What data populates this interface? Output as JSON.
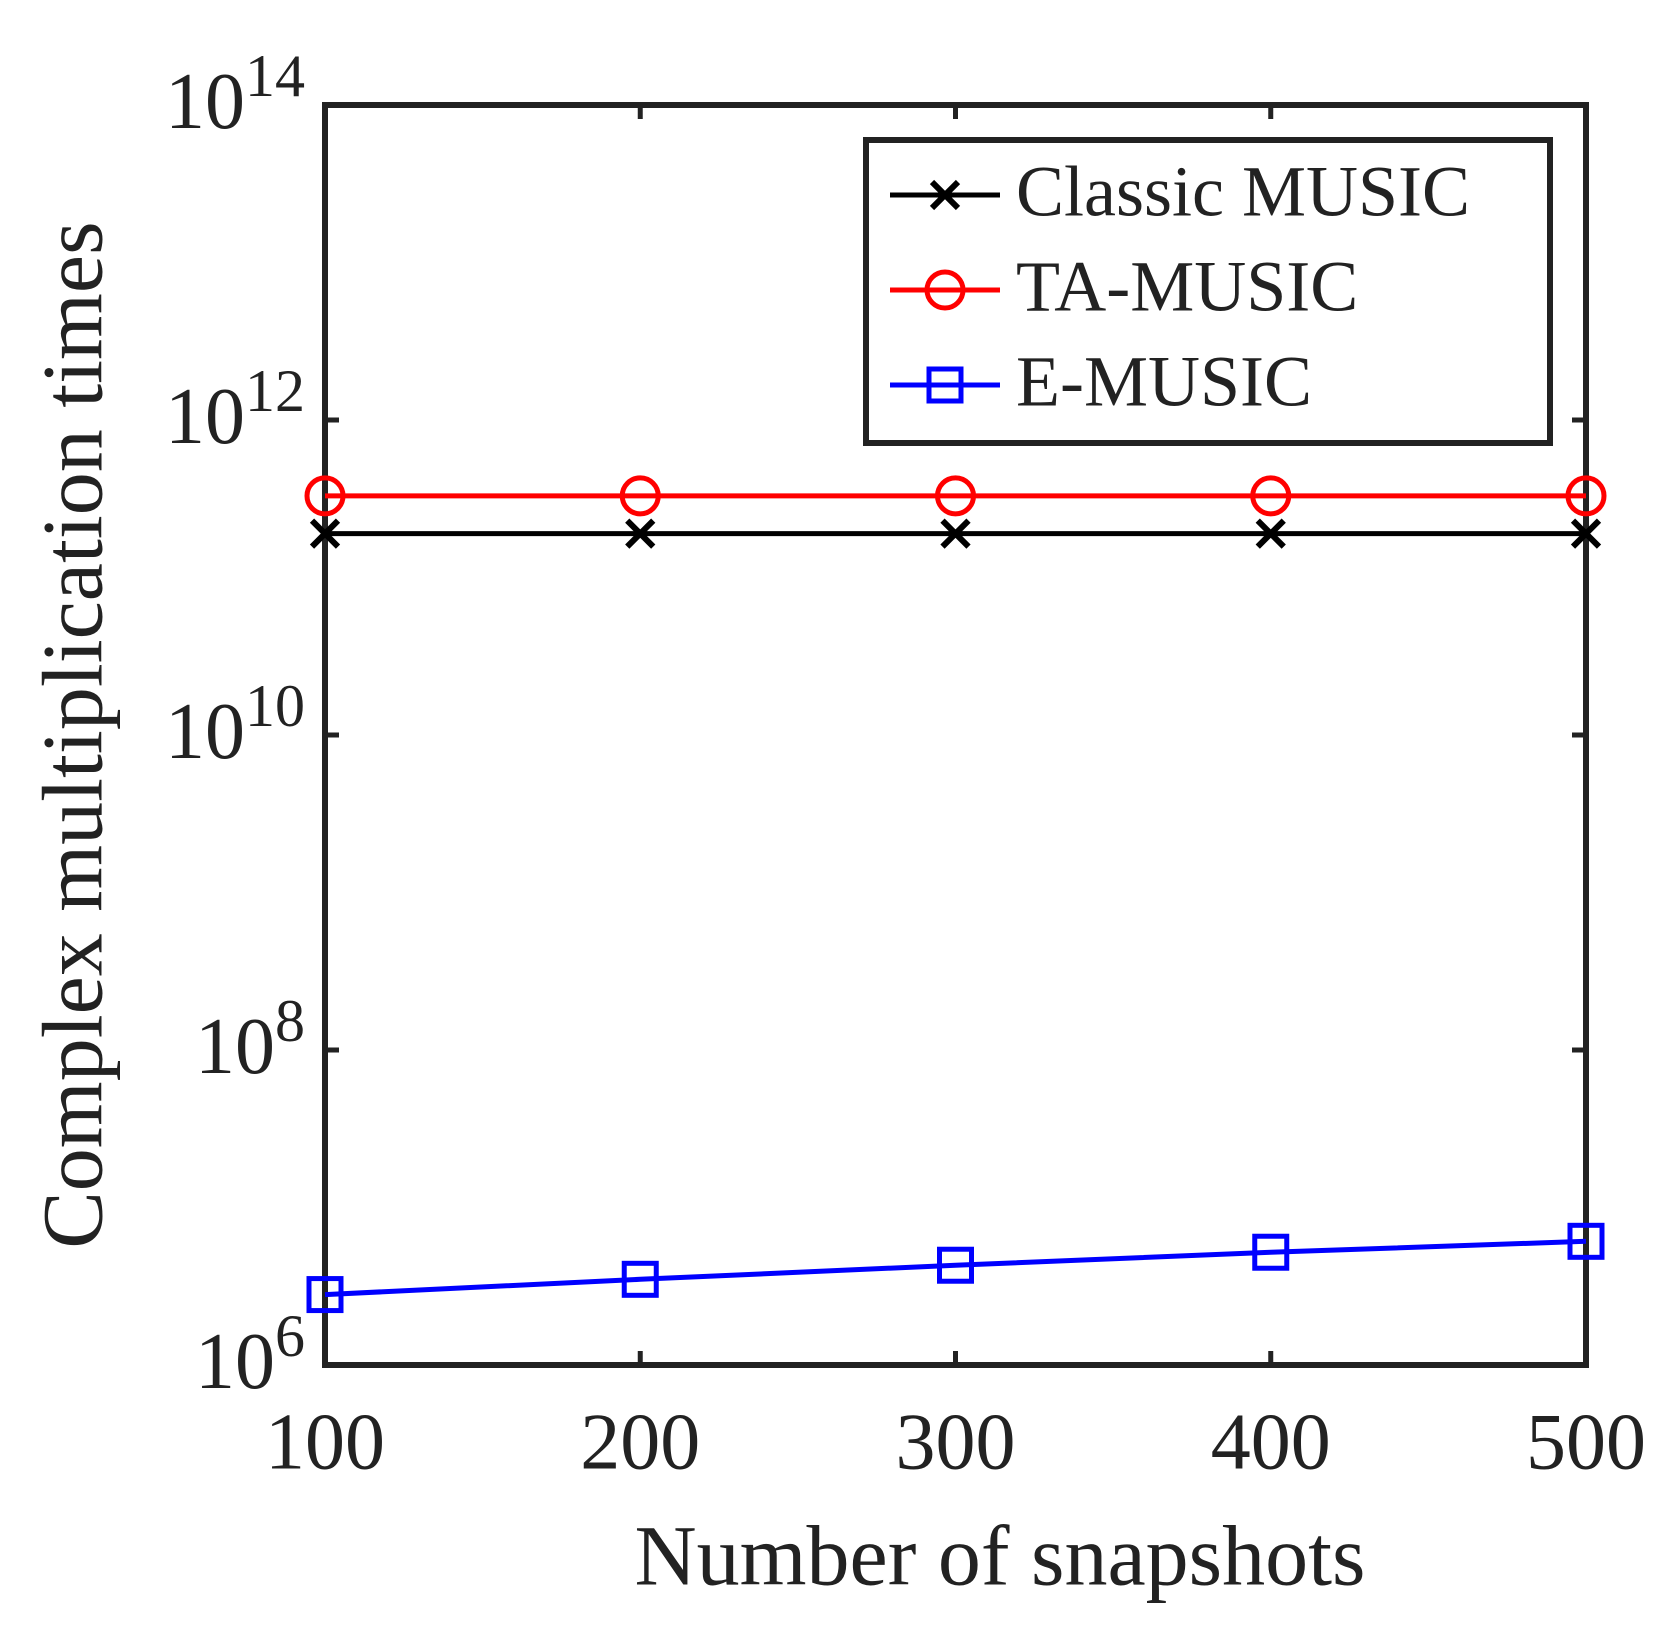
{
  "chart_data": {
    "type": "line",
    "xlabel": "Number of snapshots",
    "ylabel": "Complex multiplication times",
    "x": [
      100,
      200,
      300,
      400,
      500
    ],
    "series": [
      {
        "name": "Classic MUSIC",
        "color": "#000000",
        "marker": "x",
        "values": [
          190000000000,
          190000000000,
          190000000000,
          190000000000,
          190000000000
        ]
      },
      {
        "name": "TA-MUSIC",
        "color": "#ff0000",
        "marker": "circle",
        "values": [
          330000000000,
          330000000000,
          330000000000,
          330000000000,
          330000000000
        ]
      },
      {
        "name": "E-MUSIC",
        "color": "#0000ff",
        "marker": "square",
        "values": [
          2800000,
          3500000,
          4300000,
          5200000,
          6100000
        ]
      }
    ],
    "xlim": [
      100,
      500
    ],
    "xticks": [
      100,
      200,
      300,
      400,
      500
    ],
    "yscale": "log",
    "ylim": [
      1000000,
      100000000000000
    ],
    "yticks": [
      {
        "value": 1000000,
        "label": "10^6"
      },
      {
        "value": 100000000,
        "label": "10^8"
      },
      {
        "value": 10000000000,
        "label": "10^10"
      },
      {
        "value": 1000000000000,
        "label": "10^12"
      },
      {
        "value": 100000000000000,
        "label": "10^14"
      }
    ],
    "grid": false,
    "legend": "upper right"
  }
}
